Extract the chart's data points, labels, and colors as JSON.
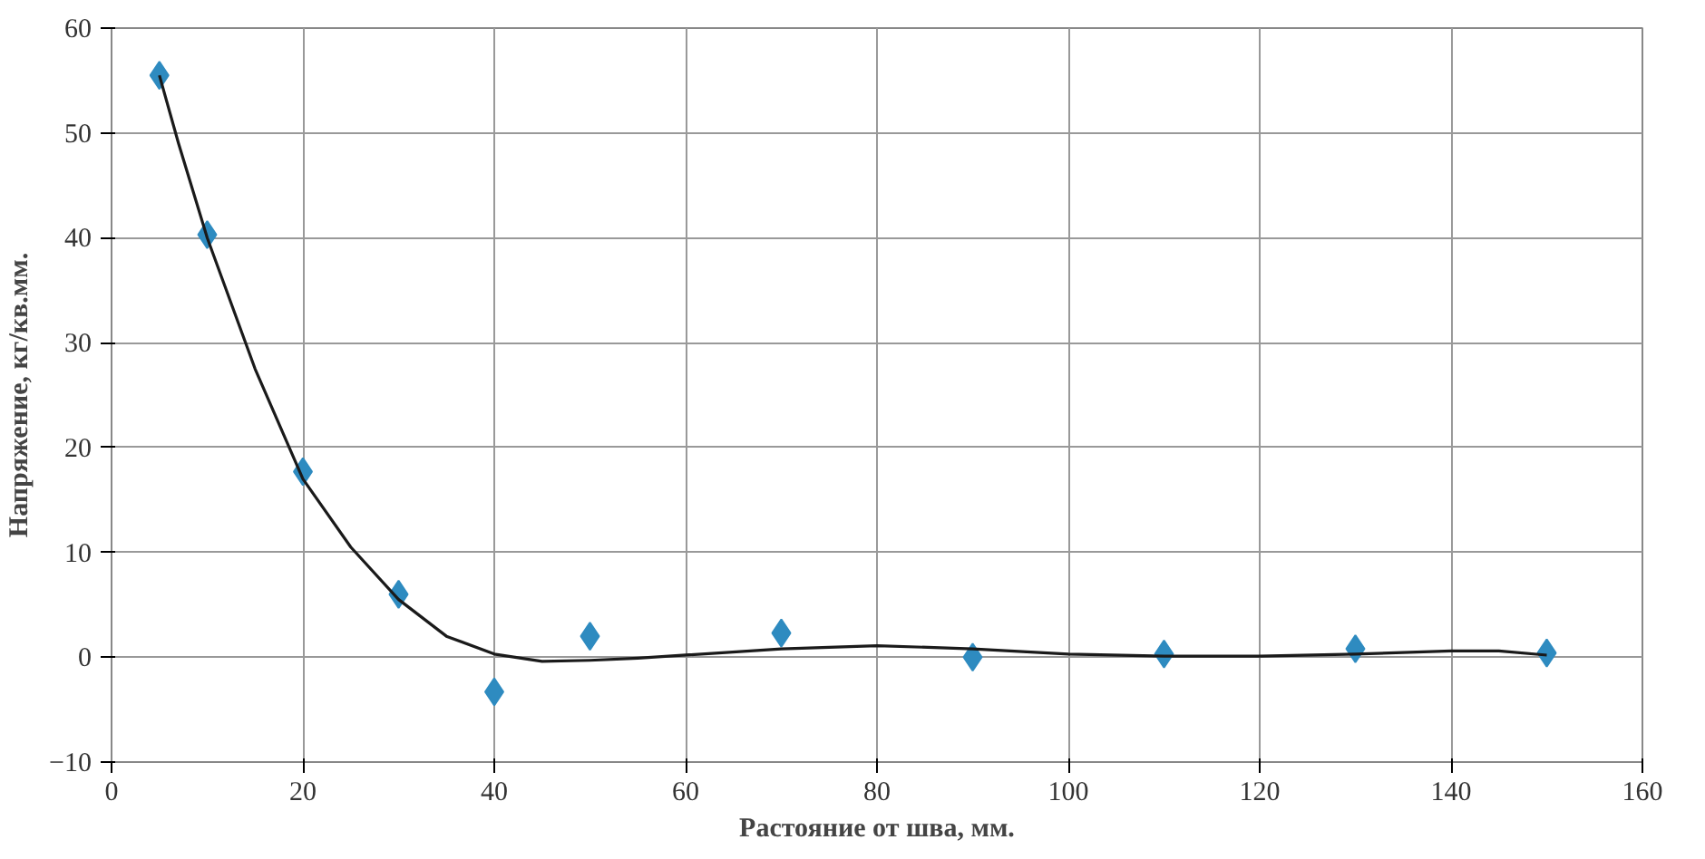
{
  "chart_data": {
    "type": "scatter",
    "xlabel": "Растояние от шва, мм.",
    "ylabel": "Напряжение, кг/кв.мм.",
    "xlim": [
      0,
      160
    ],
    "ylim": [
      -10,
      60
    ],
    "xticks": [
      0,
      20,
      40,
      60,
      80,
      100,
      120,
      140,
      160
    ],
    "yticks": [
      -10,
      0,
      10,
      20,
      30,
      40,
      50,
      60
    ],
    "grid": true,
    "series": [
      {
        "marker": "diamond",
        "color": "#2e8bc0",
        "x": [
          5,
          10,
          20,
          30,
          40,
          50,
          70,
          90,
          110,
          130,
          150
        ],
        "values": [
          55.5,
          40.3,
          17.7,
          6,
          -3.3,
          2,
          2.3,
          0,
          0.3,
          0.8,
          0.4
        ]
      },
      {
        "type": "line",
        "marker": "none",
        "color": "#1a1a1a",
        "line_style": "solid",
        "x": [
          5,
          7,
          10,
          12,
          15,
          20,
          25,
          30,
          35,
          40,
          45,
          50,
          55,
          60,
          70,
          80,
          90,
          100,
          110,
          120,
          130,
          140,
          145,
          150
        ],
        "values": [
          55.5,
          49,
          40,
          35,
          27.5,
          17,
          10.5,
          5.5,
          2,
          0.3,
          -0.4,
          -0.3,
          -0.1,
          0.2,
          0.8,
          1.1,
          0.8,
          0.3,
          0.1,
          0.1,
          0.3,
          0.6,
          0.6,
          0.2
        ]
      }
    ]
  }
}
